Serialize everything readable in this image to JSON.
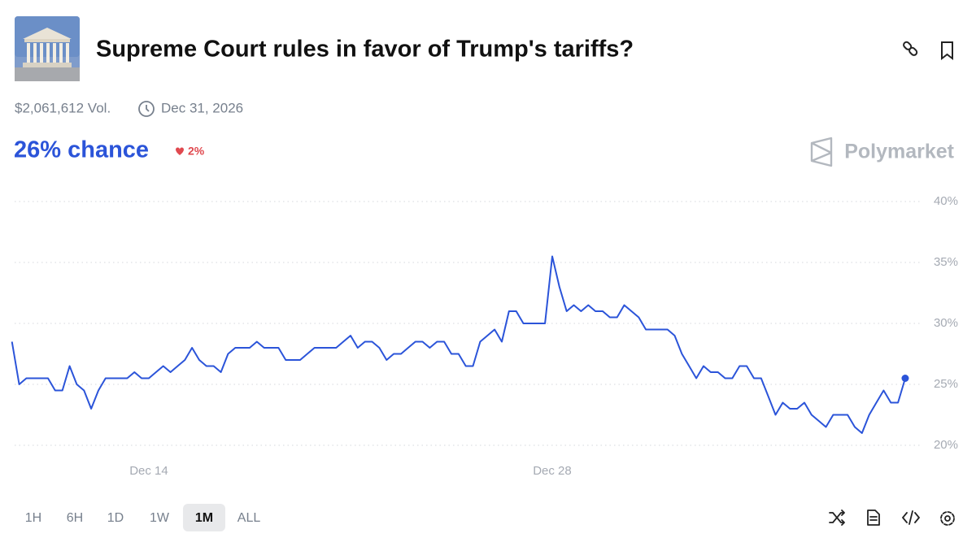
{
  "header": {
    "title": "Supreme Court rules in favor of Trump's tariffs?",
    "volume": "$2,061,612 Vol.",
    "end_date": "Dec 31, 2026",
    "headline": "26% chance",
    "change": "2%",
    "brand": "Polymarket"
  },
  "chart_data": {
    "type": "line",
    "color": "#2b54d9",
    "categories": [
      null,
      null,
      null,
      null,
      null,
      null,
      null,
      null,
      null,
      null,
      null,
      null,
      null,
      null,
      null,
      null,
      null,
      null,
      null,
      "Dec 14",
      null,
      null,
      null,
      null,
      null,
      null,
      null,
      null,
      null,
      null,
      null,
      null,
      null,
      null,
      null,
      null,
      null,
      null,
      null,
      null,
      null,
      null,
      null,
      null,
      null,
      null,
      null,
      null,
      null,
      null,
      null,
      null,
      null,
      null,
      null,
      null,
      null,
      null,
      null,
      null,
      null,
      null,
      null,
      null,
      null,
      null,
      null,
      null,
      null,
      null,
      null,
      null,
      null,
      null,
      null,
      "Dec 28",
      null,
      null,
      null,
      null,
      null,
      null,
      null,
      null,
      null,
      null,
      null,
      null,
      null,
      null,
      null,
      null,
      null,
      null,
      null,
      null,
      null,
      null,
      null,
      null,
      null,
      null,
      null,
      null,
      null,
      null,
      null,
      null,
      null,
      null,
      null,
      null,
      null,
      null,
      null,
      null,
      null,
      null,
      null,
      null,
      null,
      null,
      null,
      null,
      null
    ],
    "values": [
      28.5,
      25,
      25.5,
      25.5,
      25.5,
      25.5,
      24.5,
      24.5,
      26.5,
      25,
      24.5,
      23,
      24.5,
      25.5,
      25.5,
      25.5,
      25.5,
      26,
      25.5,
      25.5,
      26,
      26.5,
      26,
      26.5,
      27,
      28,
      27,
      26.5,
      26.5,
      26,
      27.5,
      28,
      28,
      28,
      28.5,
      28,
      28,
      28,
      27,
      27,
      27,
      27.5,
      28,
      28,
      28,
      28,
      28.5,
      29,
      28,
      28.5,
      28.5,
      28,
      27,
      27.5,
      27.5,
      28,
      28.5,
      28.5,
      28,
      28.5,
      28.5,
      27.5,
      27.5,
      26.5,
      26.5,
      28.5,
      29,
      29.5,
      28.5,
      31,
      31,
      30,
      30,
      30,
      30,
      35.5,
      33,
      31,
      31.5,
      31,
      31.5,
      31,
      31,
      30.5,
      30.5,
      31.5,
      31,
      30.5,
      29.5,
      29.5,
      29.5,
      29.5,
      29,
      27.5,
      26.5,
      25.5,
      26.5,
      26,
      26,
      25.5,
      25.5,
      26.5,
      26.5,
      25.5,
      25.5,
      24,
      22.5,
      23.5,
      23,
      23,
      23.5,
      22.5,
      22,
      21.5,
      22.5,
      22.5,
      22.5,
      21.5,
      21,
      22.5,
      23.5,
      24.5,
      23.5,
      23.5,
      25.5
    ],
    "ylim": [
      20,
      40
    ],
    "yticks": [
      {
        "value": 20,
        "label": "20%"
      },
      {
        "value": 25,
        "label": "25%"
      },
      {
        "value": 30,
        "label": "30%"
      },
      {
        "value": 35,
        "label": "35%"
      },
      {
        "value": 40,
        "label": "40%"
      }
    ],
    "grid": true
  },
  "controls": {
    "ranges": [
      "1H",
      "6H",
      "1D",
      "1W",
      "1M",
      "ALL"
    ],
    "active": "1M"
  }
}
